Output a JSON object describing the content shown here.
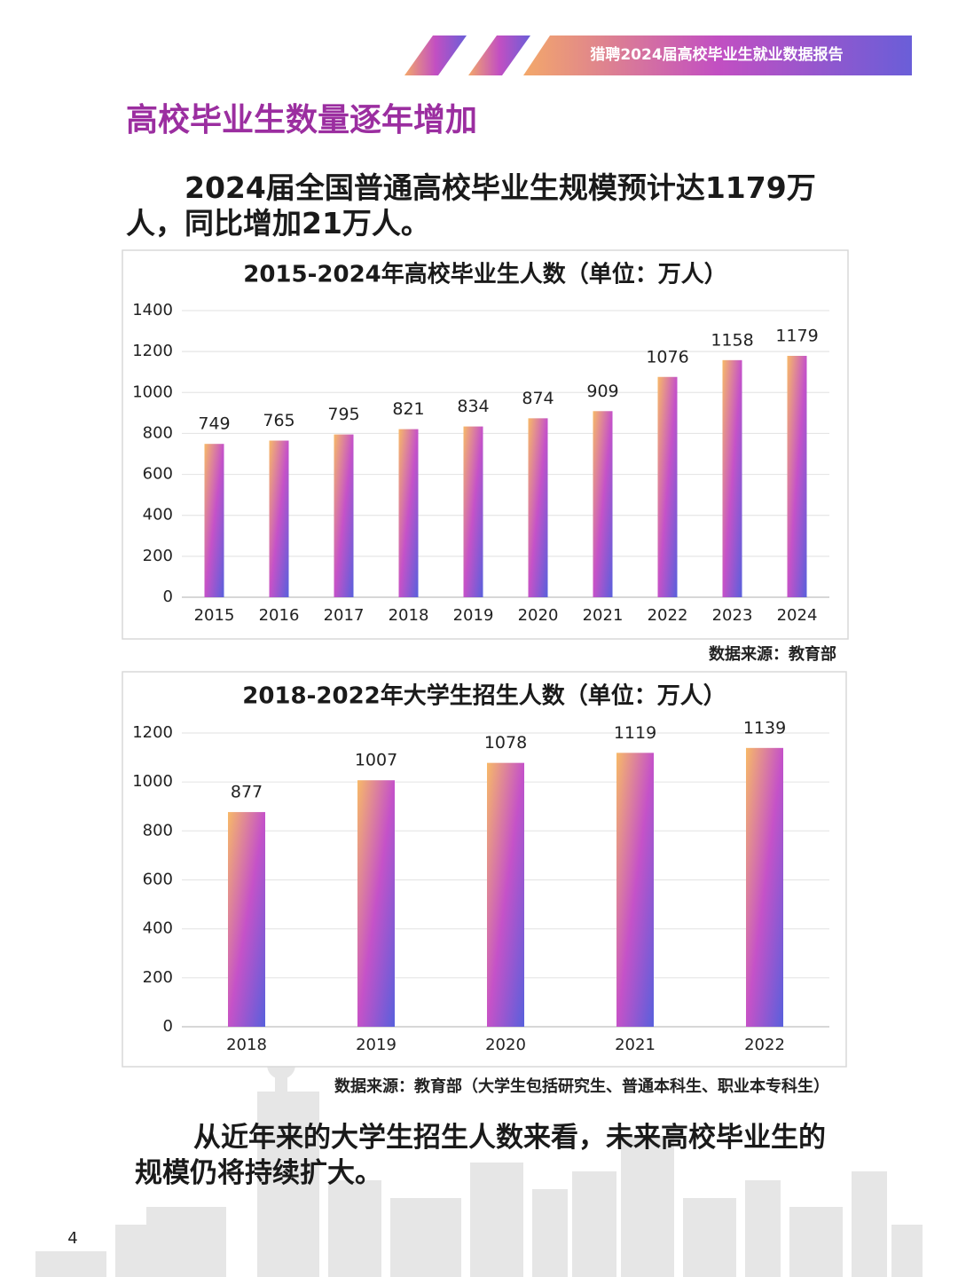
{
  "header": {
    "report_title": "猎聘2024届高校毕业生就业数据报告"
  },
  "heading": "高校毕业生数量逐年增加",
  "intro": "2024届全国普通高校毕业生规模预计达1179万人，同比增加21万人。",
  "chart_data": [
    {
      "type": "bar",
      "title": "2015-2024年高校毕业生人数（单位：万人）",
      "categories": [
        "2015",
        "2016",
        "2017",
        "2018",
        "2019",
        "2020",
        "2021",
        "2022",
        "2023",
        "2024"
      ],
      "values": [
        749,
        765,
        795,
        821,
        834,
        874,
        909,
        1076,
        1158,
        1179
      ],
      "colors": [
        "#f7b968",
        "#c552c8",
        "#5860dc"
      ],
      "ylim": [
        0,
        1400
      ],
      "yticks": [
        0,
        200,
        400,
        600,
        800,
        1000,
        1200,
        1400
      ],
      "grid": true,
      "source": "数据来源：教育部"
    },
    {
      "type": "bar",
      "title": "2018-2022年大学生招生人数（单位：万人）",
      "categories": [
        "2018",
        "2019",
        "2020",
        "2021",
        "2022"
      ],
      "values": [
        877,
        1007,
        1078,
        1119,
        1139
      ],
      "colors": [
        "#f7b968",
        "#c552c8",
        "#5860dc"
      ],
      "ylim": [
        0,
        1200
      ],
      "yticks": [
        0,
        200,
        400,
        600,
        800,
        1000,
        1200
      ],
      "grid": true,
      "source": "数据来源：教育部（大学生包括研究生、普通本科生、职业本专科生）"
    }
  ],
  "conclusion": "从近年来的大学生招生人数来看，未来高校毕业生的规模仍将持续扩大。",
  "page_number": "4"
}
